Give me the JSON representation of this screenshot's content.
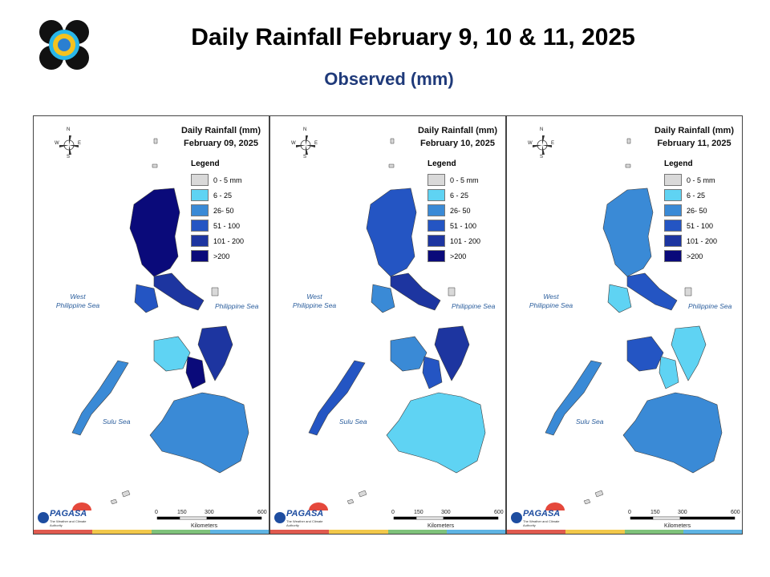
{
  "header": {
    "title": "Daily Rainfall February 9, 10 & 11, 2025",
    "subtitle": "Observed (mm)"
  },
  "legend": {
    "title": "Legend",
    "items": [
      {
        "label": "0 - 5 mm",
        "color": "#d9d9d9"
      },
      {
        "label": "6 - 25",
        "color": "#5fd3f3"
      },
      {
        "label": "26- 50",
        "color": "#3a8ad6"
      },
      {
        "label": "51 - 100",
        "color": "#2455c3"
      },
      {
        "label": "101 - 200",
        "color": "#1d35a0"
      },
      {
        "label": ">200",
        "color": "#0a0a7a"
      }
    ]
  },
  "map_labels": {
    "west_sea_line1": "West",
    "west_sea_line2": "Philippine Sea",
    "east_sea": "Philippine Sea",
    "south_sea": "Sulu Sea",
    "compass": {
      "n": "N",
      "s": "S",
      "e": "E",
      "w": "W"
    },
    "scale": {
      "ticks": [
        "0",
        "150",
        "300",
        "600"
      ],
      "unit": "Kilometers"
    },
    "brand": {
      "name": "PAGASA",
      "tagline": "The Weather and Climate Authority"
    }
  },
  "panels": [
    {
      "title_line1": "Daily Rainfall (mm)",
      "title_line2": "February 09, 2025",
      "rain_levels": [
        5,
        4,
        3,
        2,
        1,
        4,
        5,
        2
      ]
    },
    {
      "title_line1": "Daily Rainfall (mm)",
      "title_line2": "February 10, 2025",
      "rain_levels": [
        3,
        4,
        2,
        3,
        2,
        4,
        3,
        1
      ]
    },
    {
      "title_line1": "Daily Rainfall (mm)",
      "title_line2": "February 11, 2025",
      "rain_levels": [
        2,
        3,
        1,
        2,
        3,
        1,
        1,
        2
      ]
    }
  ],
  "band_colors": [
    "#e05a4f",
    "#f2c84b",
    "#7ec27a",
    "#5fb4e3"
  ]
}
